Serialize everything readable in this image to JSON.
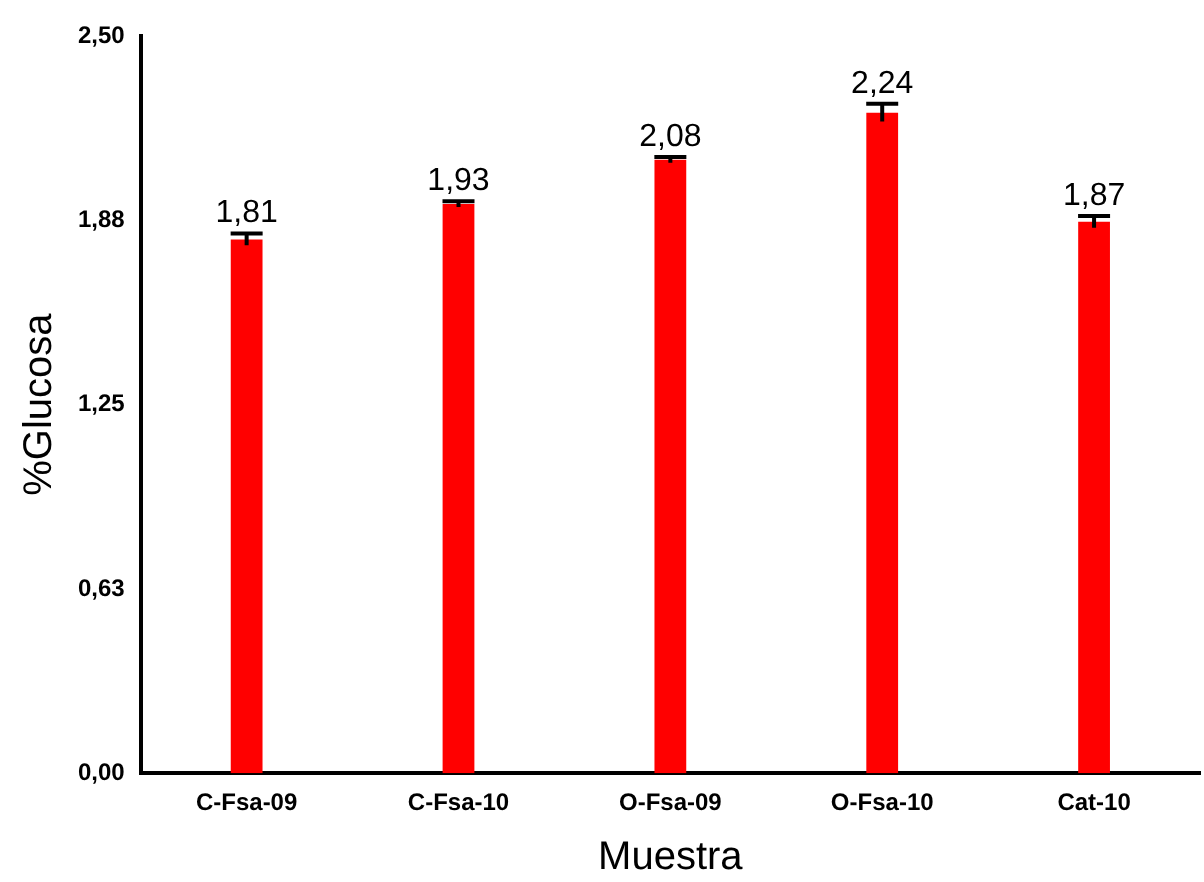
{
  "chart_data": {
    "type": "bar",
    "xlabel": "Muestra",
    "ylabel": "%Glucosa",
    "categories": [
      "C-Fsa-09",
      "C-Fsa-10",
      "O-Fsa-09",
      "O-Fsa-10",
      "Cat-10"
    ],
    "values": [
      1.81,
      1.93,
      2.08,
      2.24,
      1.87
    ],
    "errors": [
      0.02,
      0.01,
      0.01,
      0.03,
      0.02
    ],
    "value_labels": [
      "1,81",
      "1,93",
      "2,08",
      "2,24",
      "1,87"
    ],
    "color": "#ff0000",
    "ylim": [
      0,
      2.5
    ],
    "yticks": [
      {
        "value": 0,
        "label": "0,00"
      },
      {
        "value": 0.625,
        "label": "0,63"
      },
      {
        "value": 1.25,
        "label": "1,25"
      },
      {
        "value": 1.875,
        "label": "1,88"
      },
      {
        "value": 2.5,
        "label": "2,50"
      }
    ],
    "grid": false,
    "legend": false
  }
}
